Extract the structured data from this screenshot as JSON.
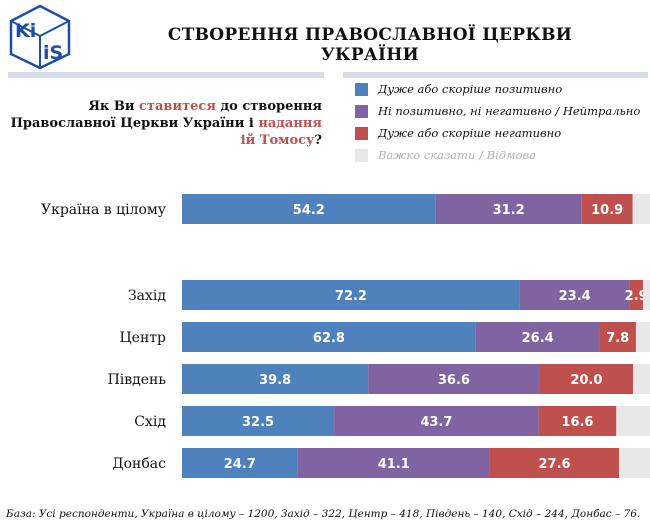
{
  "header": {
    "logo_text": "KIIS",
    "title": "СТВОРЕННЯ ПРАВОСЛАВНОЇ ЦЕРКВИ УКРАЇНИ"
  },
  "question": {
    "parts": [
      {
        "text": "Як Ви ",
        "highlight": false
      },
      {
        "text": "ставитеся",
        "highlight": true
      },
      {
        "text": " до створення Православної Церкви України і ",
        "highlight": false
      },
      {
        "text": "надання ій Томосу",
        "highlight": true
      },
      {
        "text": "?",
        "highlight": false
      }
    ]
  },
  "colors": {
    "positive": "#4f81bd",
    "neutral": "#8064a2",
    "negative": "#c0504d",
    "dont_know": "#e8e8e8",
    "highlight": "#c0504d",
    "rule": "#d8dce6"
  },
  "chart_data": {
    "type": "bar",
    "orientation": "horizontal",
    "stacked": true,
    "legend_position": "top-right",
    "categories": [
      "Україна в цілому",
      "Захід",
      "Центр",
      "Південь",
      "Схід",
      "Донбас"
    ],
    "series": [
      {
        "name": "Дуже або скоріше позитивно",
        "color": "#4f81bd",
        "values": [
          54.2,
          72.2,
          62.8,
          39.8,
          32.5,
          24.7
        ],
        "labels": [
          "54.2",
          "72.2",
          "62.8",
          "39.8",
          "32.5",
          "24.7"
        ]
      },
      {
        "name": "Ні позитивно, ні негативно / Нейтрально",
        "color": "#8064a2",
        "values": [
          31.2,
          23.4,
          26.4,
          36.6,
          43.7,
          41.1
        ],
        "labels": [
          "31.2",
          "23.4",
          "26.4",
          "36.6",
          "43.7",
          "41.1"
        ]
      },
      {
        "name": "Дуже або скоріше негативно",
        "color": "#c0504d",
        "values": [
          10.9,
          2.9,
          7.8,
          20.0,
          16.6,
          27.6
        ],
        "labels": [
          "10.9",
          "2.9",
          "7.8",
          "20.0",
          "16.6",
          "27.6"
        ]
      },
      {
        "name": "Важко сказати / Відмова",
        "color": "#e8e8e8",
        "values": [
          3.7,
          1.5,
          3.0,
          3.6,
          7.2,
          6.6
        ],
        "labels": []
      }
    ],
    "xlim": [
      0,
      100
    ]
  },
  "footnote": "База: Усі респонденти, Україна в цілому – 1200, Захід – 322, Центр – 418, Південь – 140, Схід – 244, Донбас – 76."
}
